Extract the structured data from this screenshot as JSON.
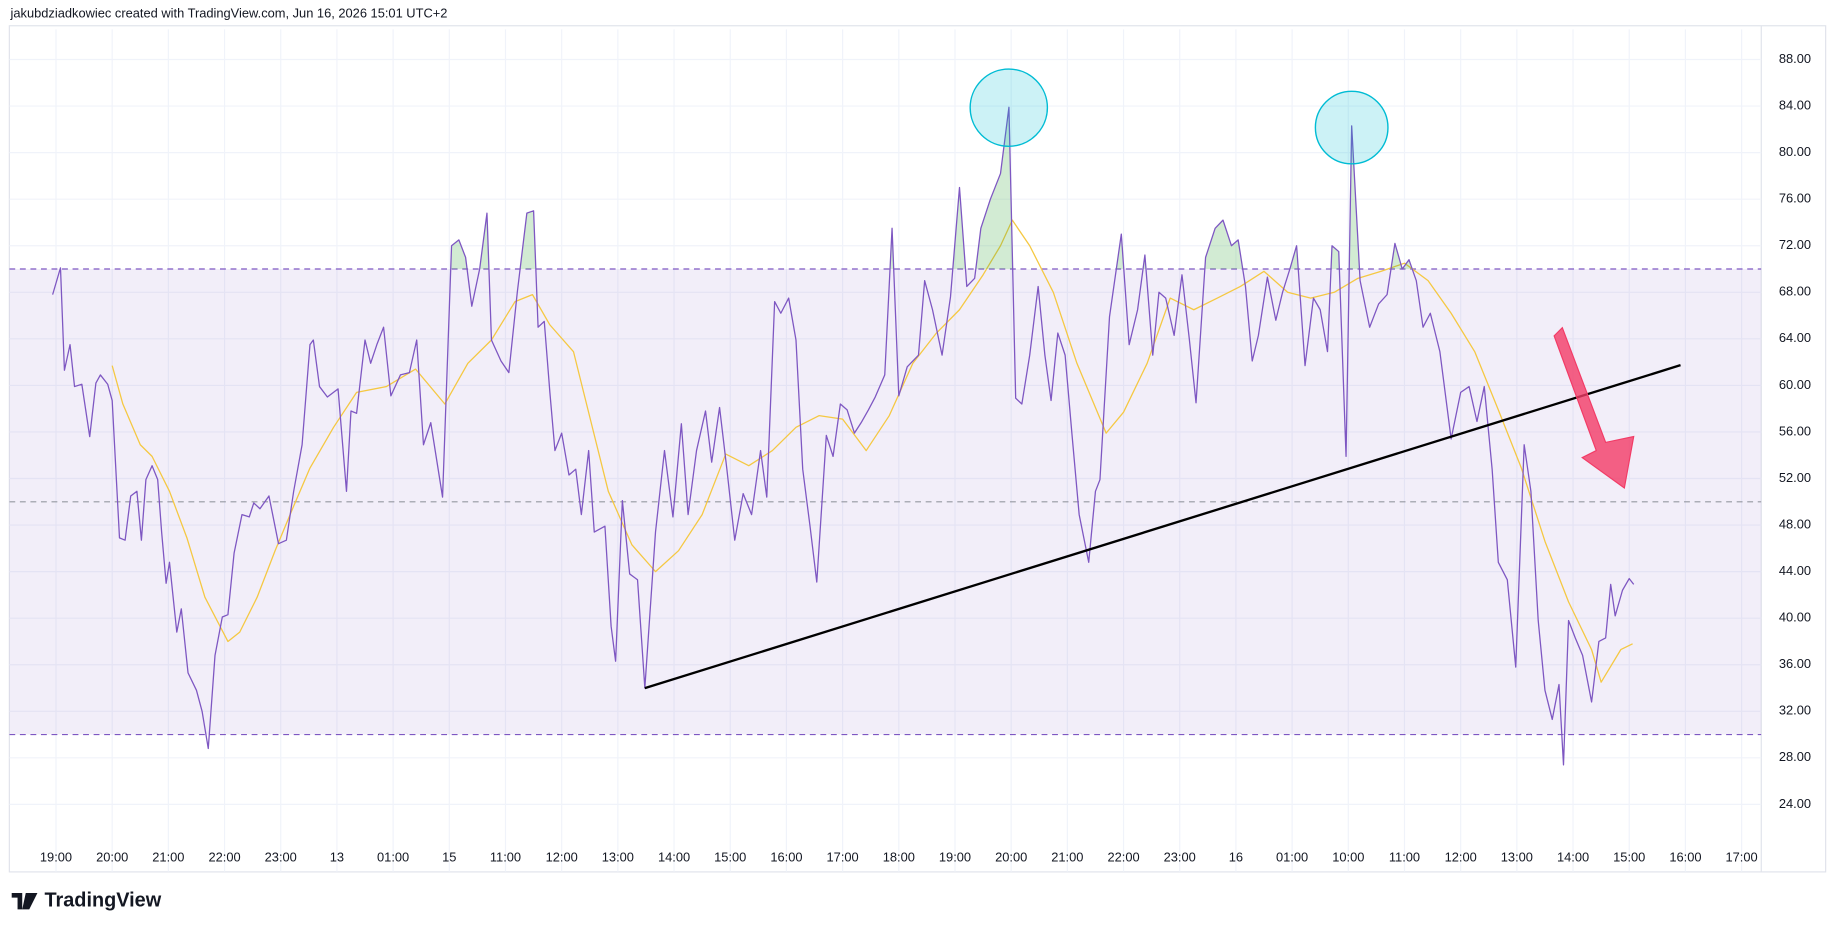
{
  "chart_data": {
    "type": "line",
    "attribution": "jakubdziadkowiec created with TradingView.com, Jun 16, 2026 15:01 UTC+2",
    "brand": "TradingView",
    "xlim": [
      -0.83,
      30.35
    ],
    "ylim": [
      18.2,
      90.6
    ],
    "grid": true,
    "upper_band": 70,
    "middle_band": 50,
    "lower_band": 30,
    "band_color": "#7e57c2",
    "overbought_color": "#4caf50",
    "xticks": [
      {
        "value": 0,
        "label": "19:00"
      },
      {
        "value": 1,
        "label": "20:00"
      },
      {
        "value": 2,
        "label": "21:00"
      },
      {
        "value": 3,
        "label": "22:00"
      },
      {
        "value": 4,
        "label": "23:00"
      },
      {
        "value": 5,
        "label": "13"
      },
      {
        "value": 6,
        "label": "01:00"
      },
      {
        "value": 7,
        "label": "15"
      },
      {
        "value": 8,
        "label": "11:00"
      },
      {
        "value": 9,
        "label": "12:00"
      },
      {
        "value": 10,
        "label": "13:00"
      },
      {
        "value": 11,
        "label": "14:00"
      },
      {
        "value": 12,
        "label": "15:00"
      },
      {
        "value": 13,
        "label": "16:00"
      },
      {
        "value": 14,
        "label": "17:00"
      },
      {
        "value": 15,
        "label": "18:00"
      },
      {
        "value": 16,
        "label": "19:00"
      },
      {
        "value": 17,
        "label": "20:00"
      },
      {
        "value": 18,
        "label": "21:00"
      },
      {
        "value": 19,
        "label": "22:00"
      },
      {
        "value": 20,
        "label": "23:00"
      },
      {
        "value": 21,
        "label": "16"
      },
      {
        "value": 22,
        "label": "01:00"
      },
      {
        "value": 23,
        "label": "10:00"
      },
      {
        "value": 24,
        "label": "11:00"
      },
      {
        "value": 25,
        "label": "12:00"
      },
      {
        "value": 26,
        "label": "13:00"
      },
      {
        "value": 27,
        "label": "14:00"
      },
      {
        "value": 28,
        "label": "15:00"
      },
      {
        "value": 29,
        "label": "16:00"
      },
      {
        "value": 30,
        "label": "17:00"
      }
    ],
    "yticks": [
      {
        "value": 24,
        "label": "24.00"
      },
      {
        "value": 28,
        "label": "28.00"
      },
      {
        "value": 32,
        "label": "32.00"
      },
      {
        "value": 36,
        "label": "36.00"
      },
      {
        "value": 40,
        "label": "40.00"
      },
      {
        "value": 44,
        "label": "44.00"
      },
      {
        "value": 48,
        "label": "48.00"
      },
      {
        "value": 52,
        "label": "52.00"
      },
      {
        "value": 56,
        "label": "56.00"
      },
      {
        "value": 60,
        "label": "60.00"
      },
      {
        "value": 64,
        "label": "64.00"
      },
      {
        "value": 68,
        "label": "68.00"
      },
      {
        "value": 72,
        "label": "72.00"
      },
      {
        "value": 76,
        "label": "76.00"
      },
      {
        "value": 80,
        "label": "80.00"
      },
      {
        "value": 84,
        "label": "84.00"
      },
      {
        "value": 88,
        "label": "88.00"
      }
    ],
    "series": [
      {
        "color": "#7e57c2",
        "x": [
          -0.06,
          0.08,
          0.15,
          0.25,
          0.33,
          0.46,
          0.6,
          0.71,
          0.79,
          0.92,
          1.0,
          1.13,
          1.23,
          1.33,
          1.44,
          1.52,
          1.6,
          1.71,
          1.81,
          1.88,
          1.96,
          2.02,
          2.15,
          2.23,
          2.35,
          2.5,
          2.6,
          2.71,
          2.83,
          2.96,
          3.06,
          3.17,
          3.31,
          3.44,
          3.52,
          3.63,
          3.79,
          3.96,
          4.1,
          4.23,
          4.38,
          4.52,
          4.58,
          4.69,
          4.83,
          5.02,
          5.17,
          5.25,
          5.35,
          5.5,
          5.6,
          5.71,
          5.83,
          5.96,
          6.13,
          6.29,
          6.42,
          6.54,
          6.67,
          6.88,
          7.04,
          7.17,
          7.29,
          7.4,
          7.54,
          7.67,
          7.75,
          7.92,
          8.06,
          8.21,
          8.38,
          8.5,
          8.58,
          8.69,
          8.79,
          8.88,
          9.0,
          9.13,
          9.25,
          9.35,
          9.48,
          9.58,
          9.77,
          9.88,
          9.96,
          10.08,
          10.21,
          10.35,
          10.48,
          10.67,
          10.83,
          10.98,
          11.13,
          11.25,
          11.4,
          11.56,
          11.67,
          11.81,
          11.94,
          12.08,
          12.23,
          12.38,
          12.54,
          12.65,
          12.79,
          12.9,
          13.04,
          13.17,
          13.29,
          13.42,
          13.54,
          13.71,
          13.83,
          13.96,
          14.08,
          14.21,
          14.33,
          14.46,
          14.58,
          14.75,
          14.88,
          15.0,
          15.15,
          15.35,
          15.46,
          15.6,
          15.77,
          15.92,
          16.08,
          16.21,
          16.35,
          16.46,
          16.63,
          16.81,
          16.96,
          17.08,
          17.19,
          17.33,
          17.48,
          17.6,
          17.71,
          17.83,
          17.96,
          18.08,
          18.21,
          18.38,
          18.5,
          18.58,
          18.75,
          18.96,
          19.1,
          19.25,
          19.38,
          19.52,
          19.63,
          19.75,
          19.9,
          20.04,
          20.17,
          20.29,
          20.46,
          20.63,
          20.77,
          20.92,
          21.04,
          21.17,
          21.29,
          21.4,
          21.56,
          21.71,
          21.83,
          21.96,
          22.08,
          22.23,
          22.38,
          22.5,
          22.63,
          22.71,
          22.83,
          22.96,
          23.06,
          23.21,
          23.38,
          23.54,
          23.69,
          23.83,
          23.96,
          24.08,
          24.21,
          24.33,
          24.46,
          24.63,
          24.83,
          25.0,
          25.15,
          25.29,
          25.42,
          25.56,
          25.67,
          25.83,
          25.98,
          26.13,
          26.25,
          26.38,
          26.5,
          26.63,
          26.75,
          26.83,
          26.92,
          27.04,
          27.17,
          27.33,
          27.46,
          27.58,
          27.67,
          27.75,
          27.88,
          28.0,
          28.08
        ],
        "values": [
          67.8,
          70.1,
          61.3,
          63.5,
          59.9,
          60.1,
          55.6,
          60.2,
          60.9,
          60.1,
          58.7,
          46.9,
          46.7,
          50.5,
          50.9,
          46.7,
          51.9,
          53.1,
          51.9,
          47.4,
          43.0,
          44.8,
          38.8,
          40.8,
          35.3,
          33.8,
          32.0,
          28.8,
          36.8,
          40.1,
          40.3,
          45.6,
          48.9,
          48.7,
          49.9,
          49.4,
          50.5,
          46.4,
          46.7,
          50.9,
          54.9,
          63.5,
          63.9,
          59.9,
          59.0,
          59.7,
          50.9,
          57.8,
          57.6,
          63.9,
          61.9,
          63.5,
          65.0,
          59.1,
          60.9,
          61.1,
          63.9,
          54.9,
          56.8,
          50.4,
          72.0,
          72.5,
          71.0,
          66.8,
          70.0,
          74.8,
          63.9,
          62.1,
          61.1,
          68.0,
          74.8,
          75.0,
          65.0,
          65.5,
          59.4,
          54.4,
          55.9,
          52.3,
          52.8,
          48.9,
          54.4,
          47.4,
          47.9,
          39.3,
          36.3,
          50.1,
          43.8,
          43.3,
          34.0,
          47.4,
          54.4,
          48.7,
          56.7,
          48.9,
          54.4,
          57.8,
          53.4,
          58.1,
          52.8,
          46.7,
          50.7,
          48.9,
          54.4,
          50.4,
          67.2,
          66.2,
          67.5,
          63.9,
          52.8,
          47.9,
          43.1,
          55.7,
          53.9,
          58.4,
          57.9,
          55.9,
          56.8,
          57.9,
          59.0,
          60.9,
          73.5,
          59.1,
          61.6,
          62.6,
          69.0,
          66.5,
          62.6,
          67.6,
          77.0,
          68.5,
          69.2,
          73.5,
          76.0,
          78.2,
          83.9,
          58.9,
          58.4,
          62.6,
          68.5,
          62.6,
          58.7,
          64.5,
          62.6,
          55.9,
          48.9,
          44.8,
          50.9,
          51.9,
          65.9,
          73.0,
          63.5,
          66.5,
          71.2,
          62.6,
          68.0,
          67.5,
          64.3,
          69.5,
          64.0,
          58.5,
          71.0,
          73.5,
          74.2,
          72.0,
          72.5,
          68.5,
          62.1,
          64.3,
          69.3,
          65.6,
          68.0,
          70.0,
          72.0,
          61.7,
          67.5,
          66.5,
          62.9,
          72.0,
          71.5,
          53.9,
          82.3,
          69.0,
          65.0,
          67.0,
          67.8,
          72.2,
          70.0,
          70.8,
          69.0,
          65.0,
          66.2,
          62.9,
          55.4,
          59.4,
          59.9,
          56.9,
          59.9,
          52.8,
          44.8,
          43.3,
          35.8,
          54.9,
          50.9,
          39.8,
          33.8,
          31.3,
          34.3,
          27.4,
          39.8,
          38.3,
          36.8,
          32.8,
          38.0,
          38.3,
          42.9,
          40.2,
          42.4,
          43.4,
          42.9
        ]
      },
      {
        "color": "#f5c842",
        "x": [
          1.0,
          1.19,
          1.5,
          1.71,
          2.02,
          2.33,
          2.65,
          3.06,
          3.27,
          3.58,
          3.9,
          4.21,
          4.52,
          4.94,
          5.35,
          5.88,
          6.4,
          6.92,
          7.33,
          7.75,
          8.17,
          8.48,
          8.79,
          9.21,
          9.52,
          9.83,
          10.25,
          10.67,
          11.08,
          11.5,
          11.92,
          12.33,
          12.75,
          13.17,
          13.58,
          14.0,
          14.42,
          14.83,
          15.25,
          15.67,
          16.08,
          16.5,
          16.81,
          17.02,
          17.33,
          17.75,
          18.17,
          18.69,
          19.0,
          19.42,
          19.83,
          20.25,
          20.67,
          21.08,
          21.5,
          21.92,
          22.33,
          22.75,
          23.17,
          23.58,
          24.0,
          24.42,
          24.83,
          25.25,
          25.67,
          26.08,
          26.5,
          26.92,
          27.33,
          27.5,
          27.85,
          28.06
        ],
        "values": [
          61.7,
          58.4,
          54.9,
          53.9,
          50.9,
          46.9,
          41.8,
          38.0,
          38.8,
          41.8,
          45.8,
          49.4,
          52.9,
          56.4,
          59.4,
          59.9,
          61.4,
          58.4,
          61.9,
          63.9,
          67.2,
          67.8,
          65.2,
          62.9,
          56.9,
          50.9,
          46.3,
          44.0,
          45.8,
          48.9,
          54.1,
          53.1,
          54.4,
          56.4,
          57.4,
          57.1,
          54.4,
          57.4,
          61.9,
          64.5,
          66.5,
          69.5,
          72.0,
          74.2,
          72.0,
          68.0,
          61.9,
          55.9,
          57.7,
          61.9,
          67.5,
          66.5,
          67.5,
          68.5,
          69.8,
          68.0,
          67.5,
          68.0,
          69.2,
          69.8,
          70.5,
          69.0,
          66.2,
          62.9,
          57.9,
          52.9,
          46.6,
          41.4,
          37.3,
          34.5,
          37.3,
          37.8
        ]
      }
    ]
  }
}
